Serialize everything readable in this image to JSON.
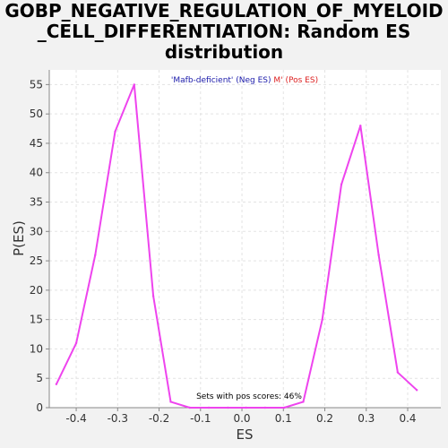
{
  "chart_data": {
    "type": "line",
    "title_lines": [
      "GOBP_NEGATIVE_REGULATION_OF_MYELOID",
      "_CELL_DIFFERENTIATION: Random ES",
      "distribution"
    ],
    "xlabel": "ES",
    "ylabel": "P(ES)",
    "xlim": [
      -0.465,
      0.48
    ],
    "ylim": [
      0,
      57.5
    ],
    "x_ticks": [
      "-0.4",
      "-0.3",
      "-0.2",
      "-0.1",
      "0.0",
      "0.1",
      "0.2",
      "0.3",
      "0.4"
    ],
    "x_tick_values": [
      -0.4,
      -0.3,
      -0.2,
      -0.1,
      0.0,
      0.1,
      0.2,
      0.3,
      0.4
    ],
    "y_ticks": [
      "0",
      "5",
      "10",
      "15",
      "20",
      "25",
      "30",
      "35",
      "40",
      "45",
      "50",
      "55"
    ],
    "y_tick_values": [
      0,
      5,
      10,
      15,
      20,
      25,
      30,
      35,
      40,
      45,
      50,
      55
    ],
    "grid": true,
    "line_color": "#ee44ee",
    "legend": {
      "neg": "'Mafb-deficient' (Neg ES)",
      "pos": "M' (Pos ES)",
      "neg_color": "#1a1aaa",
      "pos_color": "#dd2222"
    },
    "annotation": "Sets with pos scores: 46%",
    "series": [
      {
        "x": [
          -0.448,
          -0.4,
          -0.354,
          -0.306,
          -0.26,
          -0.214,
          -0.172,
          -0.126,
          -0.08,
          -0.034,
          0.01,
          0.056,
          0.102,
          0.148,
          0.194,
          0.24,
          0.286,
          0.33,
          0.376,
          0.422
        ],
        "y": [
          4,
          11,
          26,
          47,
          55,
          19,
          1,
          0,
          0,
          0,
          0,
          0,
          0,
          1,
          15,
          38,
          48,
          26,
          6,
          3
        ]
      }
    ]
  }
}
